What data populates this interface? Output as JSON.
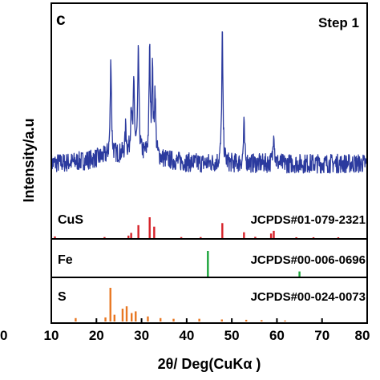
{
  "chart_data": {
    "type": "line",
    "panel_letter": "c",
    "step_label": "Step 1",
    "ylabel": "Intensity/a.u",
    "xlabel": "2θ/ Deg(CuKα )",
    "xlim": [
      10,
      80
    ],
    "x_ticks": [
      10,
      20,
      30,
      40,
      50,
      60,
      70,
      80
    ],
    "x_tick_labels": [
      "10",
      "20",
      "30",
      "40",
      "50",
      "60",
      "70",
      "80"
    ],
    "left_edge_tick_label": "0",
    "colors": {
      "pattern": "#2b3a9e",
      "cus": "#d6232a",
      "fe": "#1aa33a",
      "s": "#e87722"
    },
    "measured_pattern": {
      "name": "Step 1",
      "baseline": 0.18,
      "noise": 0.06,
      "peaks": [
        {
          "x": 23.2,
          "y": 0.78
        },
        {
          "x": 26.5,
          "y": 0.35
        },
        {
          "x": 27.7,
          "y": 0.48
        },
        {
          "x": 28.3,
          "y": 0.6
        },
        {
          "x": 29.3,
          "y": 0.84
        },
        {
          "x": 31.8,
          "y": 0.82
        },
        {
          "x": 32.4,
          "y": 0.7
        },
        {
          "x": 33.0,
          "y": 0.58
        },
        {
          "x": 47.9,
          "y": 1.0
        },
        {
          "x": 52.7,
          "y": 0.42
        },
        {
          "x": 59.3,
          "y": 0.4
        }
      ]
    },
    "reference_patterns": [
      {
        "label": "CuS",
        "card": "JCPDS#01-079-2321",
        "color_key": "cus",
        "sticks": [
          [
            10.8,
            0.08
          ],
          [
            21.8,
            0.05
          ],
          [
            27.1,
            0.12
          ],
          [
            27.7,
            0.25
          ],
          [
            29.3,
            0.62
          ],
          [
            31.8,
            1.0
          ],
          [
            32.8,
            0.55
          ],
          [
            38.8,
            0.05
          ],
          [
            43.1,
            0.05
          ],
          [
            47.9,
            0.72
          ],
          [
            52.7,
            0.28
          ],
          [
            55.2,
            0.06
          ],
          [
            58.7,
            0.22
          ],
          [
            59.3,
            0.35
          ],
          [
            64.3,
            0.04
          ],
          [
            68.1,
            0.04
          ],
          [
            73.6,
            0.04
          ]
        ]
      },
      {
        "label": "Fe",
        "card": "JCPDS#00-006-0696",
        "color_key": "fe",
        "sticks": [
          [
            44.7,
            1.0
          ],
          [
            65.0,
            0.2
          ]
        ]
      },
      {
        "label": "S",
        "card": "JCPDS#00-024-0073",
        "color_key": "s",
        "sticks": [
          [
            15.4,
            0.1
          ],
          [
            22.0,
            0.12
          ],
          [
            23.1,
            1.0
          ],
          [
            24.0,
            0.2
          ],
          [
            25.8,
            0.38
          ],
          [
            26.7,
            0.45
          ],
          [
            27.8,
            0.25
          ],
          [
            28.7,
            0.3
          ],
          [
            31.4,
            0.15
          ],
          [
            34.2,
            0.1
          ],
          [
            37.1,
            0.08
          ],
          [
            42.8,
            0.08
          ],
          [
            47.8,
            0.06
          ],
          [
            53.2,
            0.05
          ],
          [
            56.6,
            0.04
          ],
          [
            61.8,
            0.03
          ]
        ]
      }
    ]
  }
}
